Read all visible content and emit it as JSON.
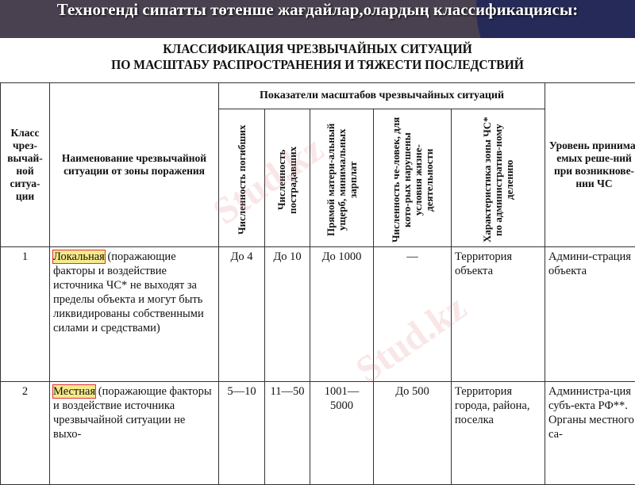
{
  "slide_title": "Техногенді сипатты төтенше жағдайлар,олардың классификациясы:",
  "table_title_line1": "КЛАССИФИКАЦИЯ ЧРЕЗВЫЧАЙНЫХ СИТУАЦИЙ",
  "table_title_line2": "ПО МАСШТАБУ РАСПРОСТРАНЕНИЯ И ТЯЖЕСТИ ПОСЛЕДСТВИЙ",
  "headers": {
    "class": "Класс чрез-вычай-ной ситуа-ции",
    "name": "Наименование чрезвычайной ситуации от зоны поражения",
    "group": "Показатели масштабов чрезвычайных ситуаций",
    "dead": "Численность погибших",
    "injured": "Численность пострадавших",
    "damage": "Прямой матери-альный ущерб, минимальных зарплат",
    "disrupted": "Численность че-ловек, для кото-рых нарушены условия жизне-деятельности",
    "zone": "Характеристика зоны ЧС* по административ-ному делению",
    "level": "Уровень принима-емых реше-ний при возникнове-нии ЧС"
  },
  "rows": [
    {
      "class": "1",
      "name_hl": "Локальная",
      "name_rest": " (поражающие факторы и воздействие источника ЧС* не выходят за пределы объекта и могут быть ликвидированы собственными силами и средствами)",
      "dead": "До 4",
      "injured": "До 10",
      "damage": "До 1000",
      "disrupted": "—",
      "zone": "Территория объекта",
      "level": "Админи-страция объекта"
    },
    {
      "class": "2",
      "name_hl": "Местная",
      "name_rest": " (поражающие факторы и воздействие источника чрезвычайной ситуации не выхо-",
      "dead": "5—10",
      "injured": "11—50",
      "damage": "1001—5000",
      "disrupted": "До 500",
      "zone": "Территория города, района, поселка",
      "level": "Администра-ция субъ-екта РФ**. Органы местного са-"
    }
  ],
  "watermark": "Stud.kz"
}
